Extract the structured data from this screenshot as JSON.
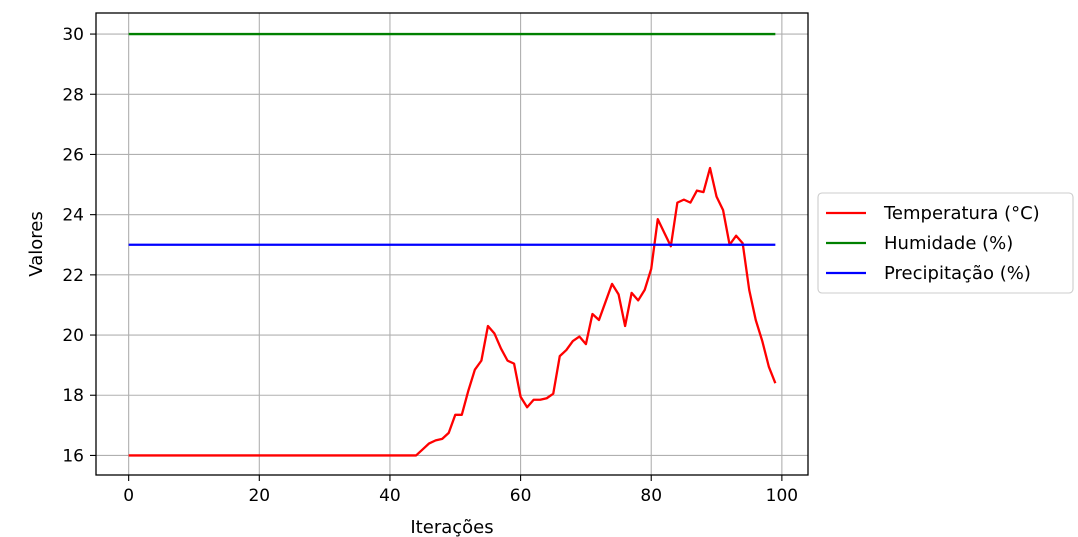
{
  "chart_data": {
    "type": "line",
    "xlabel": "Iterações",
    "ylabel": "Valores",
    "xlim": [
      -5,
      104
    ],
    "ylim": [
      15.35,
      30.7
    ],
    "xticks": [
      0,
      20,
      40,
      60,
      80,
      100
    ],
    "yticks": [
      16,
      18,
      20,
      22,
      24,
      26,
      28,
      30
    ],
    "grid": true,
    "legend_position": "right, outside",
    "series": [
      {
        "name": "Temperatura (°C)",
        "color": "#ff0000",
        "x": [
          0,
          1,
          2,
          3,
          4,
          5,
          6,
          7,
          8,
          9,
          10,
          11,
          12,
          13,
          14,
          15,
          16,
          17,
          18,
          19,
          20,
          21,
          22,
          23,
          24,
          25,
          26,
          27,
          28,
          29,
          30,
          31,
          32,
          33,
          34,
          35,
          36,
          37,
          38,
          39,
          40,
          41,
          42,
          43,
          44,
          45,
          46,
          47,
          48,
          49,
          50,
          51,
          52,
          53,
          54,
          55,
          56,
          57,
          58,
          59,
          60,
          61,
          62,
          63,
          64,
          65,
          66,
          67,
          68,
          69,
          70,
          71,
          72,
          73,
          74,
          75,
          76,
          77,
          78,
          79,
          80,
          81,
          82,
          83,
          84,
          85,
          86,
          87,
          88,
          89,
          90,
          91,
          92,
          93,
          94,
          95,
          96,
          97,
          98,
          99
        ],
        "values": [
          16,
          16,
          16,
          16,
          16,
          16,
          16,
          16,
          16,
          16,
          16,
          16,
          16,
          16,
          16,
          16,
          16,
          16,
          16,
          16,
          16,
          16,
          16,
          16,
          16,
          16,
          16,
          16,
          16,
          16,
          16,
          16,
          16,
          16,
          16,
          16,
          16,
          16,
          16,
          16,
          16,
          16,
          16,
          16,
          16,
          16.2,
          16.4,
          16.5,
          16.55,
          16.75,
          17.35,
          17.35,
          18.15,
          18.85,
          19.15,
          20.3,
          20.05,
          19.55,
          19.15,
          19.05,
          17.95,
          17.6,
          17.85,
          17.85,
          17.9,
          18.05,
          19.3,
          19.5,
          19.8,
          19.95,
          19.7,
          20.7,
          20.5,
          21.1,
          21.7,
          21.35,
          20.3,
          21.4,
          21.15,
          21.5,
          22.2,
          23.85,
          23.4,
          22.95,
          24.4,
          24.5,
          24.4,
          24.8,
          24.75,
          25.55,
          24.6,
          24.15,
          23.0,
          23.3,
          23.05,
          21.5,
          20.5,
          19.8,
          18.95,
          18.4
        ]
      },
      {
        "name": "Humidade (%)",
        "color": "#008000",
        "x": [
          0,
          99
        ],
        "values": [
          30,
          30
        ]
      },
      {
        "name": "Precipitação (%)",
        "color": "#0000ff",
        "x": [
          0,
          99
        ],
        "values": [
          23,
          23
        ]
      }
    ]
  }
}
